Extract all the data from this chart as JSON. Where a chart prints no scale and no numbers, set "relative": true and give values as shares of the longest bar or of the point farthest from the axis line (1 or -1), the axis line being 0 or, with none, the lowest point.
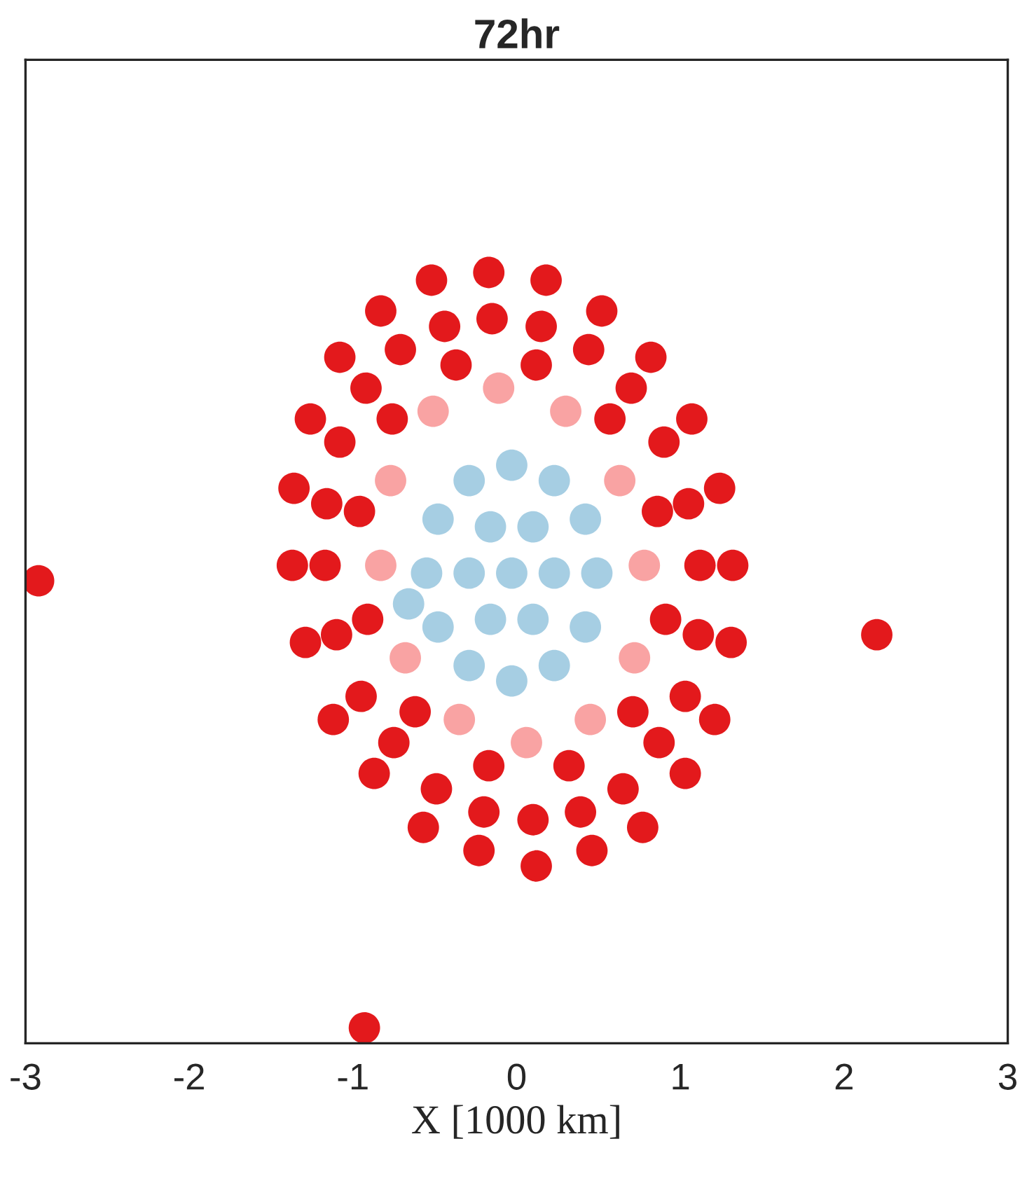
{
  "chart_data": {
    "type": "scatter",
    "title": "72hr",
    "xlabel": "X [1000 km]",
    "relative": true,
    "tick_labels": "x",
    "grid": false,
    "marker": "circle",
    "xlim": [
      -3,
      3
    ],
    "xticks": [
      {
        "value": -3,
        "label": "-3"
      },
      {
        "value": -2,
        "label": "-2"
      },
      {
        "value": -1,
        "label": "-1"
      },
      0,
      1,
      2,
      3
    ],
    "series": [
      {
        "color": "#e3191c",
        "x": [
          1.32,
          1.24,
          1.07,
          0.82,
          0.52,
          0.18,
          -0.17,
          -0.52,
          -0.83,
          -1.08,
          -1.26,
          -1.36,
          -1.37,
          -1.29,
          -1.12,
          -0.87,
          -0.57,
          -0.23,
          0.12,
          0.46,
          0.77,
          1.03,
          1.21,
          1.31,
          1.12,
          1.05,
          0.9,
          0.7,
          0.44,
          0.15,
          -0.15,
          -0.44,
          -0.71,
          -0.92,
          -1.08,
          -1.16,
          -1.17,
          -1.1,
          -0.95,
          -0.75,
          -0.49,
          -0.2,
          0.1,
          0.39,
          0.65,
          0.87,
          1.03,
          1.11,
          0.86,
          0.57,
          0.12,
          -0.37,
          -0.76,
          -0.96,
          -0.91,
          -0.62,
          -0.17,
          0.32,
          0.71,
          0.91,
          -2.92,
          2.2,
          -0.93
        ],
        "values": [
          0.62,
          0.72,
          0.81,
          0.89,
          0.95,
          0.99,
          1.0,
          0.99,
          0.95,
          0.89,
          0.81,
          0.72,
          0.62,
          0.52,
          0.42,
          0.35,
          0.28,
          0.25,
          0.23,
          0.25,
          0.28,
          0.35,
          0.42,
          0.52,
          0.62,
          0.7,
          0.78,
          0.85,
          0.9,
          0.93,
          0.94,
          0.93,
          0.9,
          0.85,
          0.78,
          0.7,
          0.62,
          0.53,
          0.45,
          0.39,
          0.33,
          0.3,
          0.29,
          0.3,
          0.33,
          0.39,
          0.45,
          0.53,
          0.69,
          0.81,
          0.88,
          0.88,
          0.81,
          0.69,
          0.55,
          0.43,
          0.36,
          0.36,
          0.43,
          0.55,
          0.6,
          0.53,
          0.02
        ]
      },
      {
        "color": "#f9a3a3",
        "x": [
          0.78,
          0.63,
          0.3,
          -0.11,
          -0.51,
          -0.77,
          -0.83,
          -0.68,
          -0.35,
          0.06,
          0.45,
          0.72
        ],
        "values": [
          0.62,
          0.73,
          0.82,
          0.85,
          0.82,
          0.73,
          0.62,
          0.5,
          0.42,
          0.39,
          0.42,
          0.5
        ]
      },
      {
        "color": "#a6cee3",
        "x": [
          0.49,
          0.42,
          0.23,
          -0.03,
          -0.29,
          -0.48,
          -0.55,
          -0.48,
          -0.29,
          -0.03,
          0.23,
          0.42,
          0.23,
          0.1,
          -0.16,
          -0.29,
          -0.16,
          0.1,
          -0.03,
          -0.66
        ],
        "values": [
          0.61,
          0.68,
          0.73,
          0.75,
          0.73,
          0.68,
          0.61,
          0.54,
          0.49,
          0.47,
          0.49,
          0.54,
          0.61,
          0.67,
          0.67,
          0.61,
          0.55,
          0.55,
          0.61,
          0.57
        ]
      }
    ]
  }
}
